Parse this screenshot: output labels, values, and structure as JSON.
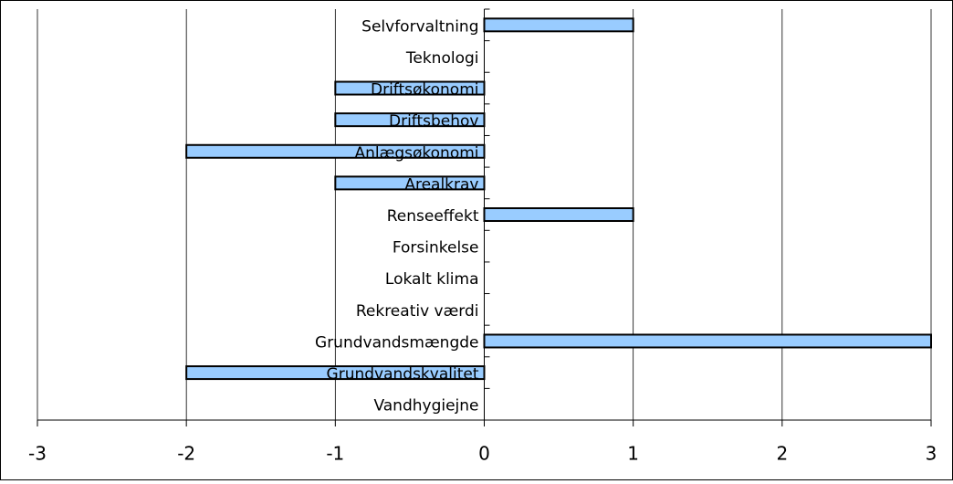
{
  "chart_data": {
    "type": "barh",
    "categories": [
      "Selvforvaltning",
      "Teknologi",
      "Driftsøkonomi",
      "Driftsbehov",
      "Anlægsøkonomi",
      "Arealkrav",
      "Renseeffekt",
      "Forsinkelse",
      "Lokalt klima",
      "Rekreativ værdi",
      "Grundvandsmængde",
      "Grundvandskvalitet",
      "Vandhygiejne"
    ],
    "values": [
      1,
      0,
      -1,
      -1,
      -2,
      -1,
      1,
      0,
      0,
      0,
      3,
      -2,
      0
    ],
    "color": "#99ccff",
    "xlim": [
      -3,
      3
    ],
    "xticks": [
      -3,
      -2,
      -1,
      0,
      1,
      2,
      3
    ],
    "grid": true
  }
}
